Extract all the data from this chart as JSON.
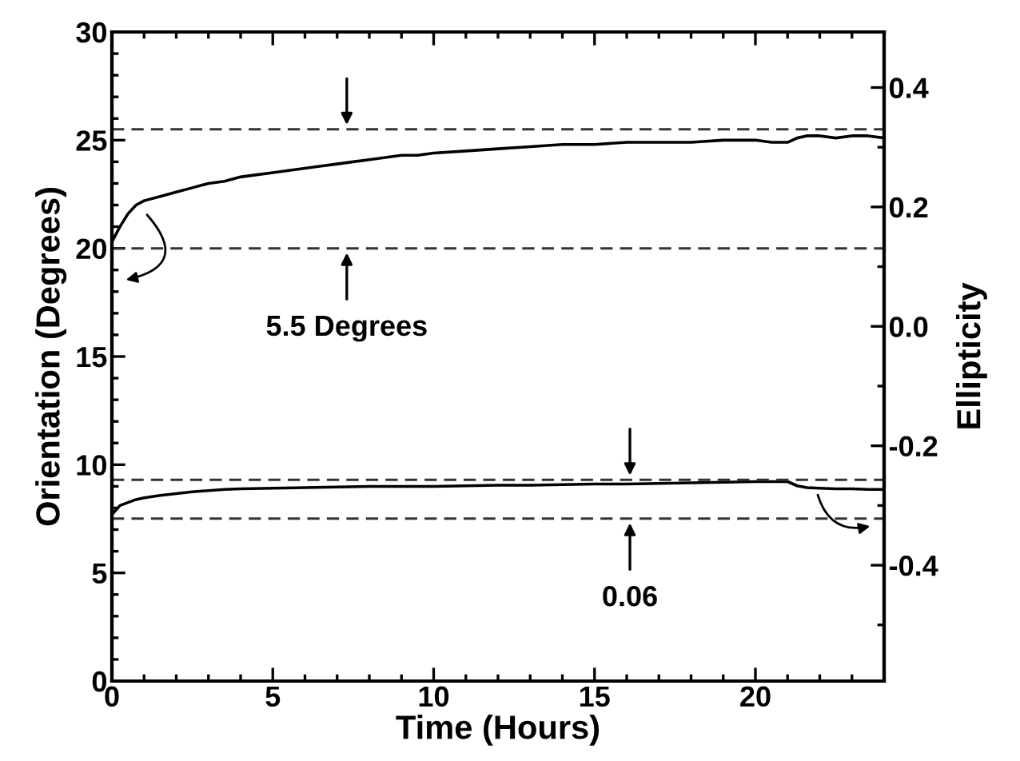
{
  "chart_data": {
    "type": "line",
    "xlabel": "Time (Hours)",
    "ylabel": "Orientation (Degrees)",
    "y2label": "Ellipticity",
    "xlim": [
      0,
      24
    ],
    "xticks": [
      0,
      5,
      10,
      15,
      20
    ],
    "ylim": [
      0,
      30
    ],
    "yticks": [
      0,
      5,
      10,
      15,
      20,
      25,
      30
    ],
    "y2lim": [
      -0.594,
      0.493
    ],
    "y2ticks": [
      {
        "value": -0.4,
        "label": "-0.4"
      },
      {
        "value": -0.2,
        "label": "-0.2"
      },
      {
        "value": 0,
        "label": "0.0"
      },
      0.2,
      0.4
    ],
    "grid": false,
    "legend": false,
    "marker": "none",
    "line_style": "solid",
    "series": [
      {
        "color": "#000000",
        "x": [
          0,
          0.25,
          0.5,
          0.75,
          1,
          1.5,
          2,
          2.5,
          3,
          3.5,
          4,
          4.5,
          5,
          5.5,
          6,
          6.5,
          7,
          7.5,
          8,
          8.5,
          9,
          9.5,
          10,
          11,
          12,
          13,
          14,
          15,
          16,
          17,
          18,
          19,
          20,
          20.5,
          21,
          21.3,
          21.6,
          22,
          22.5,
          23,
          23.5,
          24
        ],
        "values": [
          20.3,
          21.0,
          21.6,
          22.0,
          22.2,
          22.4,
          22.6,
          22.8,
          23.0,
          23.1,
          23.3,
          23.4,
          23.5,
          23.6,
          23.7,
          23.8,
          23.9,
          24.0,
          24.1,
          24.2,
          24.3,
          24.3,
          24.4,
          24.5,
          24.6,
          24.7,
          24.8,
          24.8,
          24.9,
          24.9,
          24.9,
          25.0,
          25.0,
          24.9,
          24.9,
          25.1,
          25.2,
          25.2,
          25.1,
          25.2,
          25.2,
          25.1
        ]
      },
      {
        "color": "#000000",
        "axis": "y2",
        "x": [
          0,
          0.25,
          0.5,
          0.75,
          1,
          1.5,
          2,
          2.5,
          3,
          3.5,
          4,
          5,
          6,
          7,
          8,
          9,
          10,
          11,
          12,
          13,
          14,
          15,
          16,
          17,
          18,
          19,
          20,
          20.5,
          21,
          21.3,
          21.6,
          22,
          22.5,
          23,
          23.5,
          24
        ],
        "values": [
          -0.315,
          -0.3,
          -0.295,
          -0.29,
          -0.287,
          -0.283,
          -0.28,
          -0.277,
          -0.275,
          -0.273,
          -0.272,
          -0.271,
          -0.27,
          -0.269,
          -0.268,
          -0.268,
          -0.268,
          -0.267,
          -0.266,
          -0.266,
          -0.265,
          -0.264,
          -0.264,
          -0.263,
          -0.262,
          -0.261,
          -0.26,
          -0.26,
          -0.26,
          -0.267,
          -0.27,
          -0.271,
          -0.272,
          -0.272,
          -0.273,
          -0.273
        ]
      }
    ],
    "ref_lines": [
      {
        "axis": "y",
        "value": 25.5,
        "color": "#333333",
        "line_style": "dashed"
      },
      {
        "axis": "y",
        "value": 20,
        "color": "#333333",
        "line_style": "dashed"
      },
      {
        "axis": "y2",
        "value": -0.257,
        "color": "#333333",
        "line_style": "dashed"
      },
      {
        "axis": "y2",
        "value": -0.322,
        "color": "#333333",
        "line_style": "dashed"
      }
    ],
    "annotations": [
      "5.5 Degrees",
      "0.06"
    ]
  }
}
